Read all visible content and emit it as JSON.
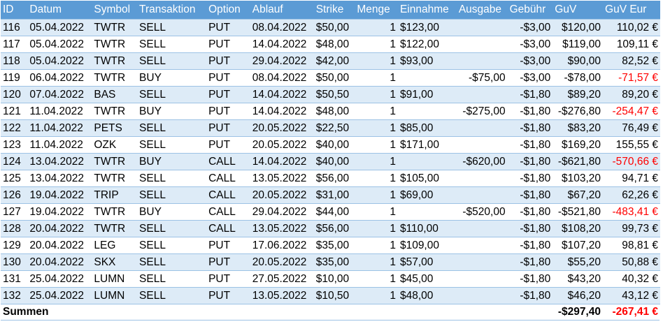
{
  "headers": {
    "id": "ID",
    "datum": "Datum",
    "symbol": "Symbol",
    "transaktion": "Transaktion",
    "option": "Option",
    "ablauf": "Ablauf",
    "strike": "Strike",
    "menge": "Menge",
    "einnahme": "Einnahme",
    "ausgabe": "Ausgabe",
    "gebuehr": "Gebühr",
    "guv": "GuV",
    "guv_eur": "GuV Eur"
  },
  "rows": [
    {
      "id": "116",
      "datum": "05.04.2022",
      "symbol": "TWTR",
      "transaktion": "SELL",
      "option": "PUT",
      "ablauf": "08.04.2022",
      "strike": "$50,00",
      "menge": "1",
      "einnahme": "$123,00",
      "ausgabe": "",
      "gebuehr": "-$3,00",
      "guv": "$120,00",
      "guv_eur": "110,02 €",
      "negative": false
    },
    {
      "id": "117",
      "datum": "05.04.2022",
      "symbol": "TWTR",
      "transaktion": "SELL",
      "option": "PUT",
      "ablauf": "14.04.2022",
      "strike": "$48,00",
      "menge": "1",
      "einnahme": "$122,00",
      "ausgabe": "",
      "gebuehr": "-$3,00",
      "guv": "$119,00",
      "guv_eur": "109,11 €",
      "negative": false
    },
    {
      "id": "118",
      "datum": "05.04.2022",
      "symbol": "TWTR",
      "transaktion": "SELL",
      "option": "PUT",
      "ablauf": "29.04.2022",
      "strike": "$42,00",
      "menge": "1",
      "einnahme": "$93,00",
      "ausgabe": "",
      "gebuehr": "-$3,00",
      "guv": "$90,00",
      "guv_eur": "82,52 €",
      "negative": false
    },
    {
      "id": "119",
      "datum": "06.04.2022",
      "symbol": "TWTR",
      "transaktion": "BUY",
      "option": "PUT",
      "ablauf": "08.04.2022",
      "strike": "$50,00",
      "menge": "1",
      "einnahme": "",
      "ausgabe": "-$75,00",
      "gebuehr": "-$3,00",
      "guv": "-$78,00",
      "guv_eur": "-71,57 €",
      "negative": true
    },
    {
      "id": "120",
      "datum": "07.04.2022",
      "symbol": "BAS",
      "transaktion": "SELL",
      "option": "PUT",
      "ablauf": "14.04.2022",
      "strike": "$50,50",
      "menge": "1",
      "einnahme": "$91,00",
      "ausgabe": "",
      "gebuehr": "-$1,80",
      "guv": "$89,20",
      "guv_eur": "89,20 €",
      "negative": false
    },
    {
      "id": "121",
      "datum": "11.04.2022",
      "symbol": "TWTR",
      "transaktion": "BUY",
      "option": "PUT",
      "ablauf": "14.04.2022",
      "strike": "$48,00",
      "menge": "1",
      "einnahme": "",
      "ausgabe": "-$275,00",
      "gebuehr": "-$1,80",
      "guv": "-$276,80",
      "guv_eur": "-254,47 €",
      "negative": true
    },
    {
      "id": "122",
      "datum": "11.04.2022",
      "symbol": "PETS",
      "transaktion": "SELL",
      "option": "PUT",
      "ablauf": "20.05.2022",
      "strike": "$22,50",
      "menge": "1",
      "einnahme": "$85,00",
      "ausgabe": "",
      "gebuehr": "-$1,80",
      "guv": "$83,20",
      "guv_eur": "76,49 €",
      "negative": false
    },
    {
      "id": "123",
      "datum": "11.04.2022",
      "symbol": "OZK",
      "transaktion": "SELL",
      "option": "PUT",
      "ablauf": "20.05.2022",
      "strike": "$40,00",
      "menge": "1",
      "einnahme": "$171,00",
      "ausgabe": "",
      "gebuehr": "-$1,80",
      "guv": "$169,20",
      "guv_eur": "155,55 €",
      "negative": false
    },
    {
      "id": "124",
      "datum": "13.04.2022",
      "symbol": "TWTR",
      "transaktion": "BUY",
      "option": "CALL",
      "ablauf": "14.04.2022",
      "strike": "$40,00",
      "menge": "1",
      "einnahme": "",
      "ausgabe": "-$620,00",
      "gebuehr": "-$1,80",
      "guv": "-$621,80",
      "guv_eur": "-570,66 €",
      "negative": true
    },
    {
      "id": "125",
      "datum": "13.04.2022",
      "symbol": "TWTR",
      "transaktion": "SELL",
      "option": "CALL",
      "ablauf": "13.05.2022",
      "strike": "$56,00",
      "menge": "1",
      "einnahme": "$105,00",
      "ausgabe": "",
      "gebuehr": "-$1,80",
      "guv": "$103,20",
      "guv_eur": "94,71 €",
      "negative": false
    },
    {
      "id": "126",
      "datum": "19.04.2022",
      "symbol": "TRIP",
      "transaktion": "SELL",
      "option": "CALL",
      "ablauf": "20.05.2022",
      "strike": "$31,00",
      "menge": "1",
      "einnahme": "$69,00",
      "ausgabe": "",
      "gebuehr": "-$1,80",
      "guv": "$67,20",
      "guv_eur": "62,26 €",
      "negative": false
    },
    {
      "id": "127",
      "datum": "19.04.2022",
      "symbol": "TWTR",
      "transaktion": "BUY",
      "option": "CALL",
      "ablauf": "29.04.2022",
      "strike": "$44,00",
      "menge": "1",
      "einnahme": "",
      "ausgabe": "-$520,00",
      "gebuehr": "-$1,80",
      "guv": "-$521,80",
      "guv_eur": "-483,41 €",
      "negative": true
    },
    {
      "id": "128",
      "datum": "20.04.2022",
      "symbol": "TWTR",
      "transaktion": "SELL",
      "option": "CALL",
      "ablauf": "13.05.2022",
      "strike": "$56,00",
      "menge": "1",
      "einnahme": "$110,00",
      "ausgabe": "",
      "gebuehr": "-$1,80",
      "guv": "$108,20",
      "guv_eur": "99,73 €",
      "negative": false
    },
    {
      "id": "129",
      "datum": "20.04.2022",
      "symbol": "LEG",
      "transaktion": "SELL",
      "option": "PUT",
      "ablauf": "17.06.2022",
      "strike": "$35,00",
      "menge": "1",
      "einnahme": "$109,00",
      "ausgabe": "",
      "gebuehr": "-$1,80",
      "guv": "$107,20",
      "guv_eur": "98,81 €",
      "negative": false
    },
    {
      "id": "130",
      "datum": "20.04.2022",
      "symbol": "SKX",
      "transaktion": "SELL",
      "option": "PUT",
      "ablauf": "20.05.2022",
      "strike": "$35,00",
      "menge": "1",
      "einnahme": "$57,00",
      "ausgabe": "",
      "gebuehr": "-$1,80",
      "guv": "$55,20",
      "guv_eur": "50,88 €",
      "negative": false
    },
    {
      "id": "131",
      "datum": "25.04.2022",
      "symbol": "LUMN",
      "transaktion": "SELL",
      "option": "PUT",
      "ablauf": "27.05.2022",
      "strike": "$10,00",
      "menge": "1",
      "einnahme": "$45,00",
      "ausgabe": "",
      "gebuehr": "-$1,80",
      "guv": "$43,20",
      "guv_eur": "40,32 €",
      "negative": false
    },
    {
      "id": "132",
      "datum": "25.04.2022",
      "symbol": "LUMN",
      "transaktion": "SELL",
      "option": "PUT",
      "ablauf": "13.05.2022",
      "strike": "$10,50",
      "menge": "1",
      "einnahme": "$48,00",
      "ausgabe": "",
      "gebuehr": "-$1,80",
      "guv": "$46,20",
      "guv_eur": "43,12 €",
      "negative": false
    }
  ],
  "summary": {
    "label": "Summen",
    "guv": "-$297,40",
    "guv_eur": "-267,41 €"
  },
  "colors": {
    "header_bg": "#5b9bd5",
    "band_bg": "#ddebf7",
    "negative_text": "#ff0000"
  }
}
